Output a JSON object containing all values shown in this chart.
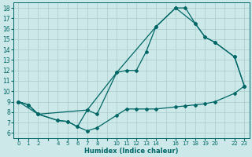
{
  "xlabel": "Humidex (Indice chaleur)",
  "bg_color": "#cce8e8",
  "line_color": "#006666",
  "grid_color": "#aacccc",
  "xlim": [
    -0.5,
    23.5
  ],
  "ylim": [
    5.5,
    18.5
  ],
  "xtick_positions": [
    0,
    1,
    2,
    3,
    4,
    5,
    6,
    7,
    8,
    9,
    10,
    11,
    12,
    13,
    14,
    15,
    16,
    17,
    18,
    19,
    20,
    21,
    22,
    23
  ],
  "xtick_labels": [
    "0",
    "1",
    "2",
    "",
    "4",
    "5",
    "6",
    "7",
    "8",
    "",
    "10",
    "11",
    "12",
    "13",
    "14",
    "",
    "16",
    "17",
    "18",
    "19",
    "20",
    "",
    "22",
    "23"
  ],
  "yticks": [
    6,
    7,
    8,
    9,
    10,
    11,
    12,
    13,
    14,
    15,
    16,
    17,
    18
  ],
  "line1_x": [
    0,
    1,
    2,
    4,
    5,
    6,
    7,
    8,
    10,
    11,
    12,
    13,
    14,
    16,
    17,
    18,
    19,
    20,
    22,
    23
  ],
  "line1_y": [
    9.0,
    8.7,
    7.8,
    7.2,
    7.1,
    6.6,
    6.2,
    6.5,
    7.7,
    8.3,
    8.3,
    8.3,
    8.3,
    8.5,
    8.6,
    8.7,
    8.8,
    9.0,
    9.8,
    10.5
  ],
  "line2_x": [
    0,
    1,
    2,
    4,
    5,
    6,
    7,
    8,
    10,
    11,
    12,
    13,
    14,
    16,
    17,
    18,
    19,
    20,
    22,
    23
  ],
  "line2_y": [
    9.0,
    8.7,
    7.8,
    7.2,
    7.1,
    6.6,
    8.2,
    7.8,
    11.8,
    12.0,
    12.0,
    13.8,
    16.2,
    18.0,
    18.0,
    16.5,
    15.2,
    14.7,
    13.3,
    10.5
  ],
  "line3_x": [
    0,
    2,
    7,
    10,
    14,
    16,
    18,
    19,
    20,
    22,
    23
  ],
  "line3_y": [
    9.0,
    7.8,
    8.2,
    11.8,
    16.2,
    18.0,
    16.5,
    15.2,
    14.7,
    13.3,
    10.5
  ]
}
